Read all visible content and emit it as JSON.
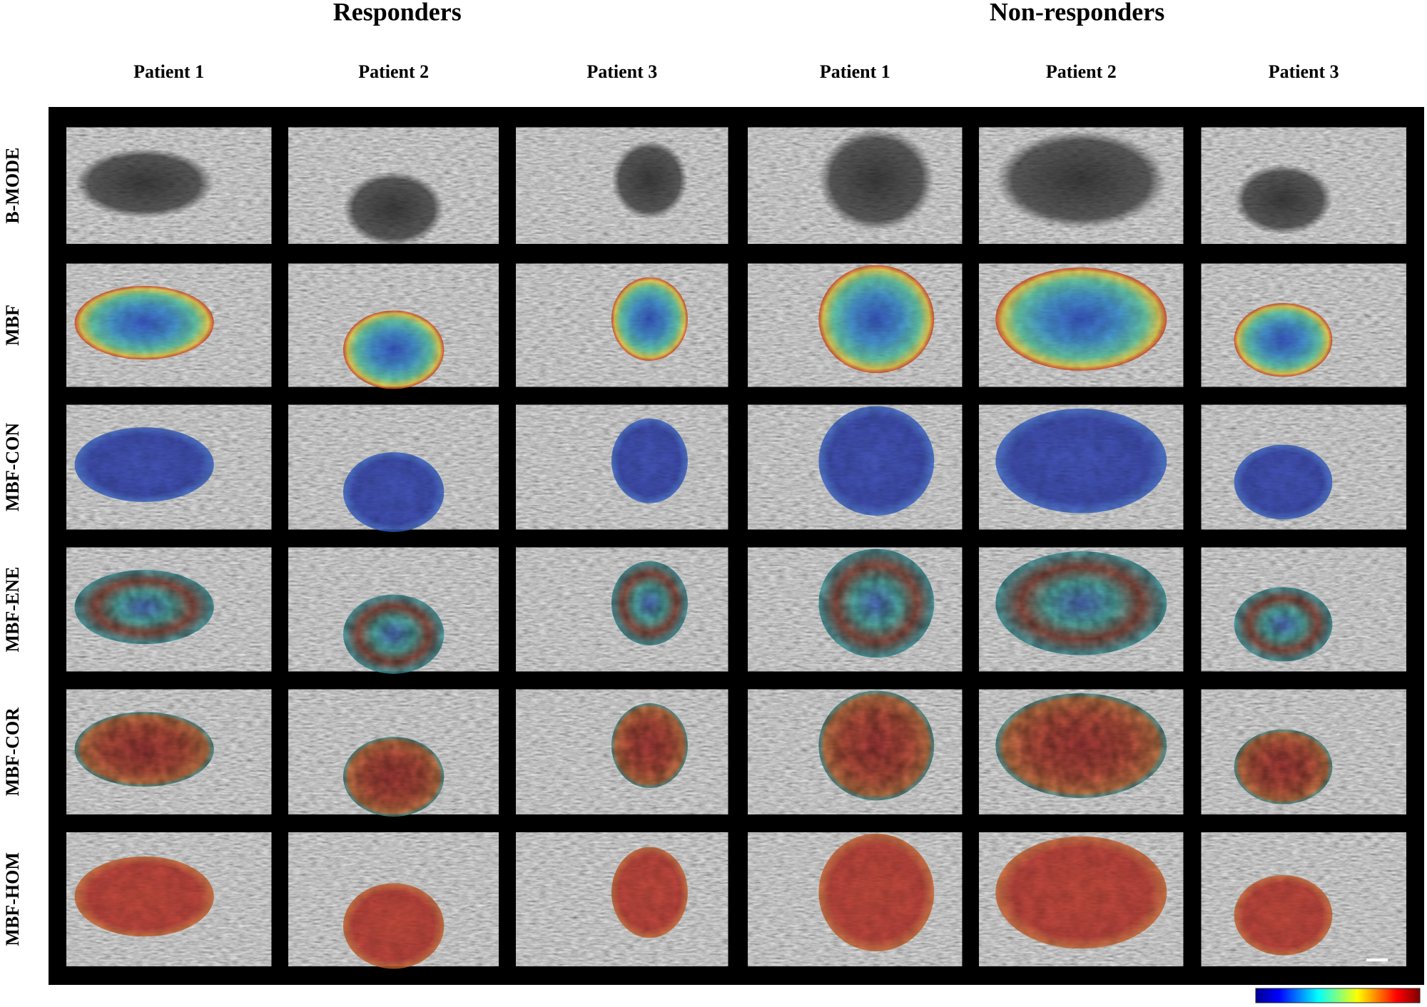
{
  "groups": [
    {
      "title": "Responders",
      "patients": [
        "Patient 1",
        "Patient 2",
        "Patient 3"
      ]
    },
    {
      "title": "Non-responders",
      "patients": [
        "Patient 1",
        "Patient 2",
        "Patient 3"
      ]
    }
  ],
  "rows": [
    "B-MODE",
    "MBF",
    "MBF-CON",
    "MBF-ENE",
    "MBF-COR",
    "MBF-HOM"
  ]
}
